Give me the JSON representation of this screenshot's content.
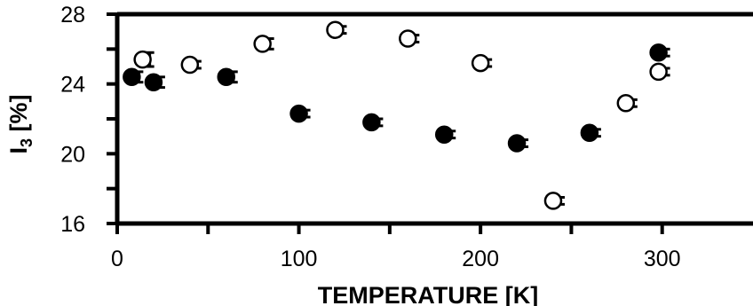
{
  "chart_data": {
    "type": "scatter",
    "title": "",
    "xlabel": "TEMPERATURE [K]",
    "ylabel_main": "I",
    "ylabel_sub": "3",
    "ylabel_tail": " [%]",
    "xlim": [
      0,
      350
    ],
    "ylim": [
      16,
      28
    ],
    "xticks": [
      0,
      100,
      200,
      300
    ],
    "xtick_labels": [
      "0",
      "100",
      "200",
      "300"
    ],
    "yticks": [
      16,
      20,
      24,
      28
    ],
    "ytick_labels": [
      "16",
      "20",
      "24",
      "28"
    ],
    "grid": false,
    "legend": "none",
    "series": [
      {
        "marker": "filled-circle",
        "color": "#000000",
        "points": [
          {
            "x": 8,
            "y": 24.4,
            "err": 0.3
          },
          {
            "x": 20,
            "y": 24.1,
            "err": 0.3
          },
          {
            "x": 60,
            "y": 24.4,
            "err": 0.3
          },
          {
            "x": 100,
            "y": 22.3,
            "err": 0.2
          },
          {
            "x": 140,
            "y": 21.8,
            "err": 0.2
          },
          {
            "x": 180,
            "y": 21.1,
            "err": 0.2
          },
          {
            "x": 220,
            "y": 20.6,
            "err": 0.2
          },
          {
            "x": 260,
            "y": 21.2,
            "err": 0.2
          },
          {
            "x": 298,
            "y": 25.8,
            "err": 0.2
          }
        ]
      },
      {
        "marker": "open-circle",
        "color": "#000000",
        "points": [
          {
            "x": 14,
            "y": 25.4,
            "err": 0.4
          },
          {
            "x": 40,
            "y": 25.1,
            "err": 0.2
          },
          {
            "x": 80,
            "y": 26.3,
            "err": 0.3
          },
          {
            "x": 120,
            "y": 27.1,
            "err": 0.2
          },
          {
            "x": 160,
            "y": 26.6,
            "err": 0.2
          },
          {
            "x": 200,
            "y": 25.2,
            "err": 0.2
          },
          {
            "x": 240,
            "y": 17.3,
            "err": 0.2
          },
          {
            "x": 280,
            "y": 22.9,
            "err": 0.2
          },
          {
            "x": 298,
            "y": 24.7,
            "err": 0.2
          }
        ]
      }
    ]
  }
}
